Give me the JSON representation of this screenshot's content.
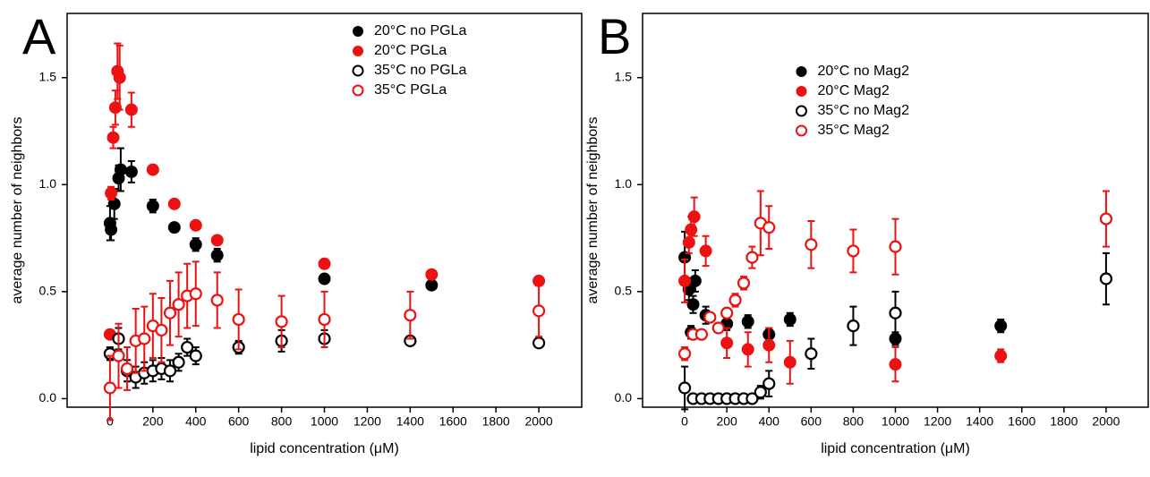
{
  "chart_data": [
    {
      "type": "scatter",
      "panel_label": "A",
      "xlabel": "lipid concentration (μM)",
      "ylabel": "average number of neighbors",
      "xlim": [
        -200,
        2200
      ],
      "ylim": [
        -0.04,
        1.8
      ],
      "xticks": [
        0,
        200,
        400,
        600,
        800,
        1000,
        1200,
        1400,
        1600,
        1800,
        2000
      ],
      "yticks": [
        {
          "value": 0,
          "label": "0.0"
        },
        0.5,
        {
          "value": 1,
          "label": "1.0"
        },
        1.5
      ],
      "legend": "upper right",
      "series": [
        {
          "name": "20°C no PGLa",
          "color": "#000000",
          "marker": "filled",
          "x": [
            0,
            5,
            20,
            40,
            50,
            100,
            200,
            300,
            400,
            500,
            1000,
            1500
          ],
          "values": [
            0.82,
            0.79,
            0.91,
            1.03,
            1.07,
            1.06,
            0.9,
            0.8,
            0.72,
            0.67,
            0.56,
            0.53
          ],
          "errors": [
            0.08,
            0.05,
            0.07,
            0.06,
            0.1,
            0.05,
            0.03,
            0.02,
            0.03,
            0.03,
            0.02,
            0.02
          ]
        },
        {
          "name": "20°C PGLa",
          "color": "#ee1111",
          "marker": "filled",
          "x": [
            0,
            5,
            15,
            25,
            35,
            45,
            100,
            200,
            300,
            400,
            500,
            1000,
            1500,
            2000
          ],
          "values": [
            0.3,
            0.96,
            1.22,
            1.36,
            1.53,
            1.5,
            1.35,
            1.07,
            0.91,
            0.81,
            0.74,
            0.63,
            0.58,
            0.55
          ],
          "errors": [
            0.02,
            0.03,
            0.05,
            0.08,
            0.13,
            0.15,
            0.08,
            0.02,
            0.02,
            0.02,
            0.02,
            0.02,
            0.02,
            0.02
          ]
        },
        {
          "name": "35°C no PGLa",
          "color": "#000000",
          "marker": "open",
          "x": [
            0,
            40,
            80,
            120,
            160,
            200,
            240,
            280,
            320,
            360,
            400,
            600,
            800,
            1000,
            1400,
            2000
          ],
          "values": [
            0.21,
            0.28,
            0.13,
            0.1,
            0.12,
            0.13,
            0.14,
            0.13,
            0.17,
            0.24,
            0.2,
            0.24,
            0.27,
            0.28,
            0.27,
            0.26
          ],
          "errors": [
            0.03,
            0.05,
            0.05,
            0.05,
            0.05,
            0.05,
            0.05,
            0.05,
            0.04,
            0.04,
            0.04,
            0.03,
            0.05,
            0.04,
            0.02,
            0.02
          ]
        },
        {
          "name": "35°C PGLa",
          "color": "#ee1111",
          "marker": "open",
          "x": [
            0,
            40,
            80,
            120,
            160,
            200,
            240,
            280,
            320,
            360,
            400,
            500,
            600,
            800,
            1000,
            1400,
            2000
          ],
          "values": [
            0.05,
            0.2,
            0.14,
            0.27,
            0.28,
            0.34,
            0.32,
            0.4,
            0.44,
            0.48,
            0.49,
            0.46,
            0.37,
            0.36,
            0.37,
            0.39,
            0.41
          ],
          "errors": [
            0.15,
            0.15,
            0.1,
            0.15,
            0.15,
            0.15,
            0.15,
            0.15,
            0.15,
            0.15,
            0.15,
            0.13,
            0.14,
            0.12,
            0.13,
            0.11,
            0.12
          ]
        }
      ]
    },
    {
      "type": "scatter",
      "panel_label": "B",
      "xlabel": "lipid concentration (μM)",
      "ylabel": "average number of neighbors",
      "xlim": [
        -200,
        2200
      ],
      "ylim": [
        -0.04,
        1.8
      ],
      "xticks": [
        0,
        200,
        400,
        600,
        800,
        1000,
        1200,
        1400,
        1600,
        1800,
        2000
      ],
      "yticks": [
        {
          "value": 0,
          "label": "0.0"
        },
        0.5,
        {
          "value": 1,
          "label": "1.0"
        },
        1.5
      ],
      "legend": "upper center",
      "series": [
        {
          "name": "20°C no Mag2",
          "color": "#000000",
          "marker": "filled",
          "x": [
            0,
            20,
            30,
            40,
            50,
            100,
            200,
            300,
            400,
            500,
            1000,
            1500
          ],
          "values": [
            0.66,
            0.51,
            0.31,
            0.44,
            0.55,
            0.39,
            0.35,
            0.36,
            0.3,
            0.37,
            0.28,
            0.34
          ],
          "errors": [
            0.12,
            0.05,
            0.03,
            0.04,
            0.05,
            0.04,
            0.03,
            0.03,
            0.03,
            0.03,
            0.03,
            0.03
          ]
        },
        {
          "name": "20°C Mag2",
          "color": "#ee1111",
          "marker": "filled",
          "x": [
            0,
            20,
            30,
            45,
            100,
            200,
            300,
            400,
            500,
            1000,
            1500
          ],
          "values": [
            0.55,
            0.73,
            0.79,
            0.85,
            0.69,
            0.26,
            0.23,
            0.25,
            0.17,
            0.16,
            0.2
          ],
          "errors": [
            0.1,
            0.05,
            0.06,
            0.09,
            0.07,
            0.07,
            0.08,
            0.08,
            0.1,
            0.08,
            0.03
          ]
        },
        {
          "name": "35°C no Mag2",
          "color": "#000000",
          "marker": "open",
          "x": [
            0,
            40,
            80,
            120,
            160,
            200,
            240,
            280,
            320,
            360,
            400,
            600,
            800,
            1000,
            2000
          ],
          "values": [
            0.05,
            0,
            0,
            0,
            0,
            0,
            0,
            0,
            0,
            0.03,
            0.07,
            0.21,
            0.34,
            0.4,
            0.56
          ],
          "errors": [
            0.1,
            0,
            0,
            0,
            0,
            0,
            0,
            0,
            0,
            0.03,
            0.06,
            0.07,
            0.09,
            0.1,
            0.12
          ]
        },
        {
          "name": "35°C Mag2",
          "color": "#ee1111",
          "marker": "open",
          "x": [
            0,
            40,
            80,
            120,
            160,
            200,
            240,
            280,
            320,
            360,
            400,
            600,
            800,
            1000,
            2000
          ],
          "values": [
            0.21,
            0.3,
            0.3,
            0.38,
            0.33,
            0.4,
            0.46,
            0.54,
            0.66,
            0.82,
            0.8,
            0.72,
            0.69,
            0.71,
            0.84
          ],
          "errors": [
            0.03,
            0.02,
            0.02,
            0.02,
            0.02,
            0.02,
            0.03,
            0.03,
            0.05,
            0.15,
            0.1,
            0.11,
            0.1,
            0.13,
            0.13
          ]
        }
      ]
    }
  ]
}
